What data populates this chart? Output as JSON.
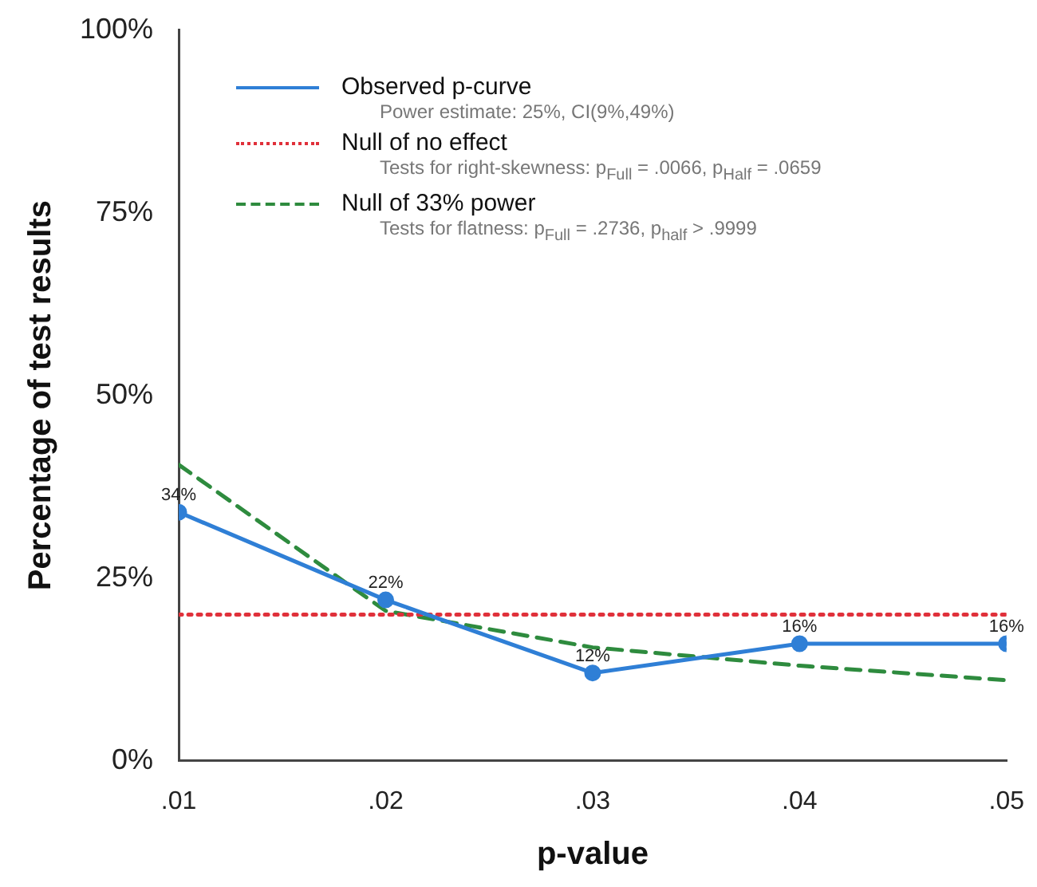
{
  "chart_data": {
    "type": "line",
    "xlabel": "p-value",
    "ylabel": "Percentage of test results",
    "x": [
      0.01,
      0.02,
      0.03,
      0.04,
      0.05
    ],
    "xlim": [
      0.01,
      0.05
    ],
    "xticks": [
      {
        "value": 0.01,
        "label": ".01"
      },
      {
        "value": 0.02,
        "label": ".02"
      },
      {
        "value": 0.03,
        "label": ".03"
      },
      {
        "value": 0.04,
        "label": ".04"
      },
      {
        "value": 0.05,
        "label": ".05"
      }
    ],
    "ylim": [
      0,
      100
    ],
    "yticks": [
      {
        "value": 0,
        "label": "0%"
      },
      {
        "value": 25,
        "label": "25%"
      },
      {
        "value": 50,
        "label": "50%"
      },
      {
        "value": 75,
        "label": "75%"
      },
      {
        "value": 100,
        "label": "100%"
      }
    ],
    "series": [
      {
        "name": "Observed p-curve",
        "color": "#2f7fd6",
        "values": [
          34,
          22,
          12,
          16,
          16
        ],
        "value_labels": [
          "34%",
          "22%",
          "12%",
          "16%",
          "16%"
        ],
        "marker": "circle",
        "line_style": "solid"
      },
      {
        "name": "Null of no effect",
        "color": "#e0303a",
        "values": [
          20,
          20,
          20,
          20,
          20
        ],
        "marker": "none",
        "line_style": "dotted"
      },
      {
        "name": "Null of 33% power",
        "color": "#2e8b3e",
        "values": [
          40.5,
          20.5,
          15.5,
          13,
          11
        ],
        "marker": "none",
        "line_style": "dashed"
      }
    ],
    "annotations": [
      "Power estimate: 25%, CI(9%,49%)",
      "Tests for right-skewness: p$_{Full}$ = .0066,  p$_{Half}$ = .0659",
      "Tests for flatness: p$_{Full}$ = .2736,  p$_{half}$ > .9999"
    ],
    "legend": "top left",
    "grid": false
  }
}
